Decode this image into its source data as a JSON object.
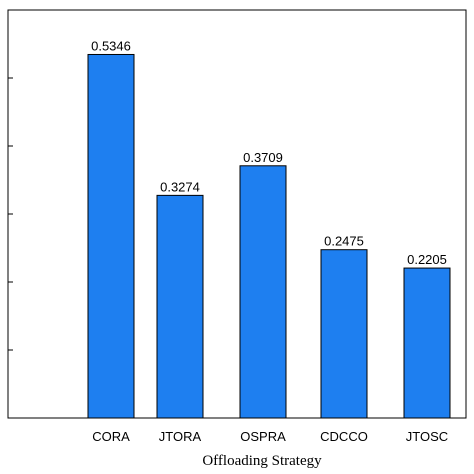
{
  "chart_data": {
    "type": "bar",
    "categories": [
      "CORA",
      "JTORA",
      "OSPRA",
      "CDCCO",
      "JTOSC"
    ],
    "values": [
      0.5346,
      0.3274,
      0.3709,
      0.2475,
      0.2205
    ],
    "value_labels": [
      "0.5346",
      "0.3274",
      "0.3709",
      "0.2475",
      "0.2205"
    ],
    "xlabel": "Offloading Strategy",
    "ylim": [
      0,
      0.6
    ],
    "y_ticks": [
      0,
      0.1,
      0.2,
      0.3,
      0.4,
      0.5,
      0.6
    ],
    "grid": false,
    "bar_color": "#1e7ff0"
  }
}
